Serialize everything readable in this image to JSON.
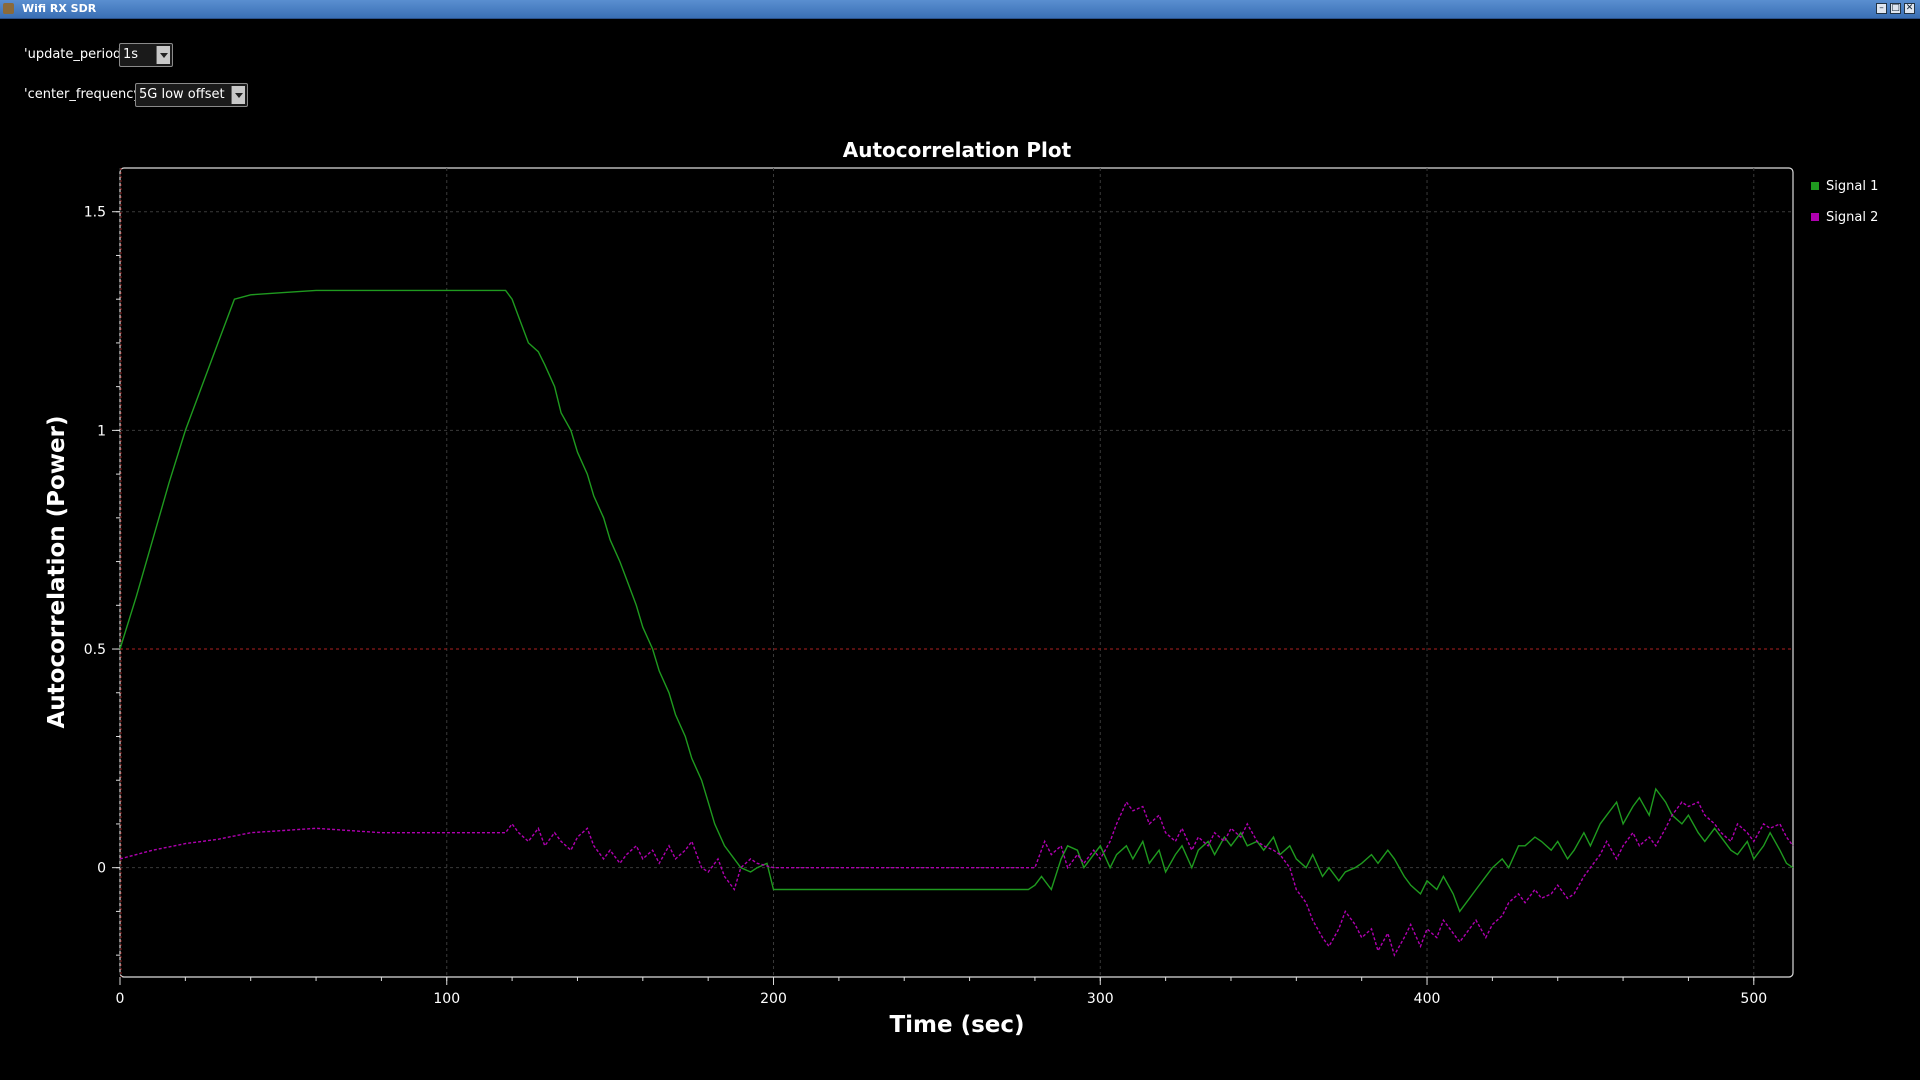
{
  "window": {
    "title": "Wifi RX SDR"
  },
  "controls": {
    "update_period": {
      "label": "'update_period':",
      "value": "1s"
    },
    "center_frequency": {
      "label": "'center_frequency':",
      "value": "5G low offset"
    }
  },
  "colors": {
    "signal1": "#1f9a1f",
    "signal2": "#b000b0",
    "grid": "#3a3a3a",
    "threshold": "#8a1a1a"
  },
  "chart_data": {
    "type": "line",
    "title": "Autocorrelation Plot",
    "xlabel": "Time (sec)",
    "ylabel": "Autocorrelation (Power)",
    "xlim": [
      0,
      512
    ],
    "ylim": [
      -0.25,
      1.6
    ],
    "xticks": [
      0,
      100,
      200,
      300,
      400,
      500
    ],
    "xtick_labels": [
      "0",
      "100",
      "200",
      "300",
      "400",
      "500"
    ],
    "yticks": [
      0,
      0.5,
      1,
      1.5
    ],
    "ytick_labels": [
      "0",
      "0.5",
      "1",
      "1.5"
    ],
    "threshold_y": 0.5,
    "grid": true,
    "legend_position": "right",
    "series": [
      {
        "name": "Signal 1",
        "x": [
          0,
          5,
          10,
          15,
          20,
          25,
          30,
          35,
          40,
          50,
          60,
          70,
          80,
          90,
          100,
          110,
          115,
          118,
          120,
          122,
          125,
          128,
          130,
          133,
          135,
          138,
          140,
          143,
          145,
          148,
          150,
          153,
          155,
          158,
          160,
          163,
          165,
          168,
          170,
          173,
          175,
          178,
          180,
          182,
          185,
          188,
          190,
          193,
          195,
          198,
          200,
          210,
          220,
          230,
          240,
          250,
          260,
          270,
          278,
          280,
          282,
          285,
          288,
          290,
          293,
          295,
          298,
          300,
          303,
          305,
          308,
          310,
          313,
          315,
          318,
          320,
          323,
          325,
          328,
          330,
          333,
          335,
          338,
          340,
          343,
          345,
          348,
          350,
          353,
          355,
          358,
          360,
          363,
          365,
          368,
          370,
          373,
          375,
          378,
          380,
          383,
          385,
          388,
          390,
          393,
          395,
          398,
          400,
          403,
          405,
          408,
          410,
          413,
          415,
          418,
          420,
          423,
          425,
          428,
          430,
          433,
          435,
          438,
          440,
          443,
          445,
          448,
          450,
          453,
          455,
          458,
          460,
          463,
          465,
          468,
          470,
          473,
          475,
          478,
          480,
          483,
          485,
          488,
          490,
          493,
          495,
          498,
          500,
          503,
          505,
          508,
          510,
          512
        ],
        "y": [
          0.5,
          0.62,
          0.75,
          0.88,
          1.0,
          1.1,
          1.2,
          1.3,
          1.31,
          1.315,
          1.32,
          1.32,
          1.32,
          1.32,
          1.32,
          1.32,
          1.32,
          1.32,
          1.3,
          1.26,
          1.2,
          1.18,
          1.15,
          1.1,
          1.04,
          1.0,
          0.95,
          0.9,
          0.85,
          0.8,
          0.75,
          0.7,
          0.66,
          0.6,
          0.55,
          0.5,
          0.45,
          0.4,
          0.35,
          0.3,
          0.25,
          0.2,
          0.15,
          0.1,
          0.05,
          0.02,
          0.0,
          -0.01,
          0.0,
          0.01,
          -0.05,
          -0.05,
          -0.05,
          -0.05,
          -0.05,
          -0.05,
          -0.05,
          -0.05,
          -0.05,
          -0.04,
          -0.02,
          -0.05,
          0.02,
          0.05,
          0.04,
          0.0,
          0.03,
          0.05,
          0.0,
          0.03,
          0.05,
          0.02,
          0.06,
          0.01,
          0.04,
          -0.01,
          0.03,
          0.05,
          0.0,
          0.04,
          0.06,
          0.03,
          0.07,
          0.05,
          0.08,
          0.05,
          0.06,
          0.04,
          0.07,
          0.03,
          0.05,
          0.02,
          0.0,
          0.03,
          -0.02,
          0.0,
          -0.03,
          -0.01,
          0.0,
          0.01,
          0.03,
          0.01,
          0.04,
          0.02,
          -0.02,
          -0.04,
          -0.06,
          -0.03,
          -0.05,
          -0.02,
          -0.06,
          -0.1,
          -0.07,
          -0.05,
          -0.02,
          0.0,
          0.02,
          0.0,
          0.05,
          0.05,
          0.07,
          0.06,
          0.04,
          0.06,
          0.02,
          0.04,
          0.08,
          0.05,
          0.1,
          0.12,
          0.15,
          0.1,
          0.14,
          0.16,
          0.12,
          0.18,
          0.15,
          0.12,
          0.1,
          0.12,
          0.08,
          0.06,
          0.09,
          0.07,
          0.04,
          0.03,
          0.06,
          0.02,
          0.05,
          0.08,
          0.04,
          0.01,
          0.0
        ]
      },
      {
        "name": "Signal 2",
        "x": [
          0,
          10,
          20,
          30,
          40,
          50,
          60,
          70,
          80,
          90,
          100,
          110,
          118,
          120,
          122,
          125,
          128,
          130,
          133,
          135,
          138,
          140,
          143,
          145,
          148,
          150,
          153,
          155,
          158,
          160,
          163,
          165,
          168,
          170,
          173,
          175,
          178,
          180,
          183,
          185,
          188,
          190,
          193,
          195,
          200,
          220,
          240,
          260,
          280,
          283,
          285,
          288,
          290,
          293,
          295,
          298,
          300,
          303,
          305,
          308,
          310,
          313,
          315,
          318,
          320,
          323,
          325,
          328,
          330,
          333,
          335,
          338,
          340,
          343,
          345,
          348,
          350,
          353,
          355,
          358,
          360,
          363,
          365,
          368,
          370,
          373,
          375,
          378,
          380,
          383,
          385,
          388,
          390,
          393,
          395,
          398,
          400,
          403,
          405,
          408,
          410,
          413,
          415,
          418,
          420,
          423,
          425,
          428,
          430,
          433,
          435,
          438,
          440,
          443,
          445,
          448,
          450,
          453,
          455,
          458,
          460,
          463,
          465,
          468,
          470,
          473,
          475,
          478,
          480,
          483,
          485,
          488,
          490,
          493,
          495,
          498,
          500,
          503,
          505,
          508,
          510,
          512
        ],
        "y": [
          0.02,
          0.04,
          0.055,
          0.065,
          0.08,
          0.085,
          0.09,
          0.085,
          0.08,
          0.08,
          0.08,
          0.08,
          0.08,
          0.1,
          0.08,
          0.06,
          0.09,
          0.05,
          0.08,
          0.06,
          0.04,
          0.07,
          0.09,
          0.05,
          0.02,
          0.04,
          0.01,
          0.03,
          0.05,
          0.02,
          0.04,
          0.01,
          0.05,
          0.02,
          0.04,
          0.06,
          0.0,
          -0.01,
          0.02,
          -0.02,
          -0.05,
          0.0,
          0.02,
          0.01,
          0.0,
          0.0,
          0.0,
          0.0,
          0.0,
          0.06,
          0.03,
          0.05,
          0.0,
          0.03,
          0.01,
          0.04,
          0.02,
          0.06,
          0.1,
          0.15,
          0.13,
          0.14,
          0.1,
          0.12,
          0.08,
          0.06,
          0.09,
          0.04,
          0.07,
          0.05,
          0.08,
          0.06,
          0.09,
          0.07,
          0.1,
          0.06,
          0.05,
          0.04,
          0.03,
          0.0,
          -0.05,
          -0.08,
          -0.12,
          -0.16,
          -0.18,
          -0.14,
          -0.1,
          -0.13,
          -0.16,
          -0.14,
          -0.19,
          -0.15,
          -0.2,
          -0.16,
          -0.13,
          -0.18,
          -0.14,
          -0.16,
          -0.12,
          -0.15,
          -0.17,
          -0.14,
          -0.12,
          -0.16,
          -0.13,
          -0.11,
          -0.08,
          -0.06,
          -0.08,
          -0.05,
          -0.07,
          -0.06,
          -0.04,
          -0.07,
          -0.06,
          -0.02,
          0.0,
          0.03,
          0.06,
          0.02,
          0.05,
          0.08,
          0.05,
          0.07,
          0.05,
          0.09,
          0.12,
          0.15,
          0.14,
          0.15,
          0.12,
          0.1,
          0.08,
          0.06,
          0.1,
          0.08,
          0.06,
          0.1,
          0.09,
          0.1,
          0.07,
          0.05
        ]
      }
    ]
  }
}
